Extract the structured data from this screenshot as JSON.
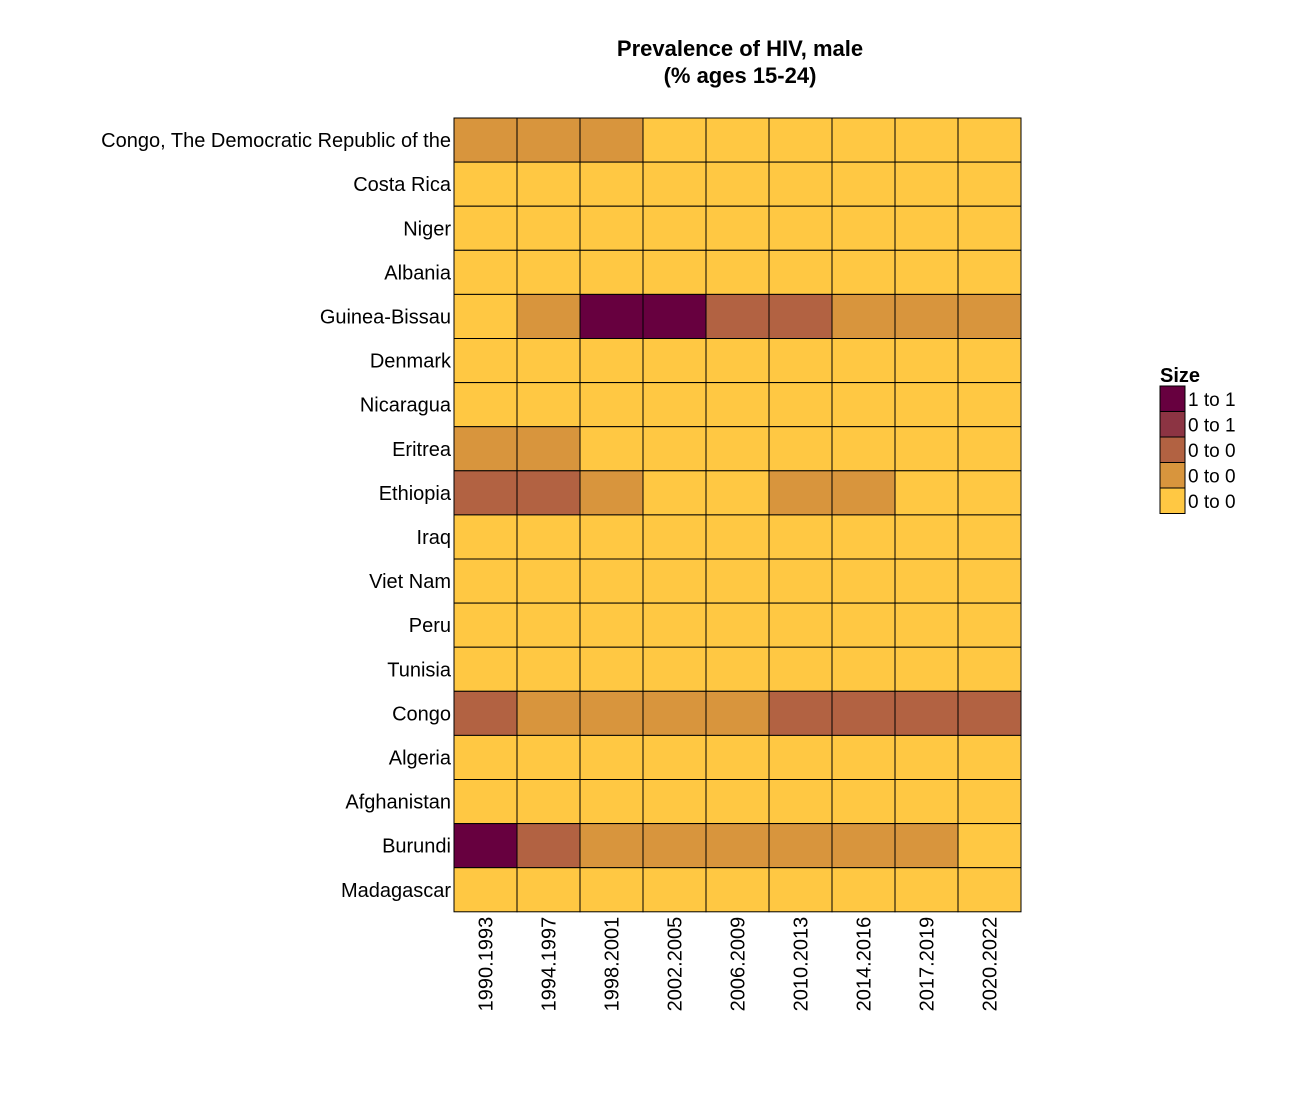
{
  "chart_data": {
    "type": "heatmap",
    "title_lines": [
      "Prevalence of HIV, male",
      "(% ages 15-24)"
    ],
    "xlabel": "",
    "ylabel": "",
    "x_categories": [
      "1990.1993",
      "1994.1997",
      "1998.2001",
      "2002.2005",
      "2006.2009",
      "2010.2013",
      "2014.2016",
      "2017.2019",
      "2020.2022"
    ],
    "y_categories": [
      "Congo, The Democratic Republic of the",
      "Costa Rica",
      "Niger",
      "Albania",
      "Guinea-Bissau",
      "Denmark",
      "Nicaragua",
      "Eritrea",
      "Ethiopia",
      "Iraq",
      "Viet Nam",
      "Peru",
      "Tunisia",
      "Congo",
      "Algeria",
      "Afghanistan",
      "Burundi",
      "Madagascar"
    ],
    "bin_index_note": "0 = lowest bin, 4 = highest bin",
    "bins": [
      [
        1,
        1,
        1,
        0,
        0,
        0,
        0,
        0,
        0
      ],
      [
        0,
        0,
        0,
        0,
        0,
        0,
        0,
        0,
        0
      ],
      [
        0,
        0,
        0,
        0,
        0,
        0,
        0,
        0,
        0
      ],
      [
        0,
        0,
        0,
        0,
        0,
        0,
        0,
        0,
        0
      ],
      [
        0,
        1,
        4,
        4,
        2,
        2,
        1,
        1,
        1
      ],
      [
        0,
        0,
        0,
        0,
        0,
        0,
        0,
        0,
        0
      ],
      [
        0,
        0,
        0,
        0,
        0,
        0,
        0,
        0,
        0
      ],
      [
        1,
        1,
        0,
        0,
        0,
        0,
        0,
        0,
        0
      ],
      [
        2,
        2,
        1,
        0,
        0,
        1,
        1,
        0,
        0
      ],
      [
        0,
        0,
        0,
        0,
        0,
        0,
        0,
        0,
        0
      ],
      [
        0,
        0,
        0,
        0,
        0,
        0,
        0,
        0,
        0
      ],
      [
        0,
        0,
        0,
        0,
        0,
        0,
        0,
        0,
        0
      ],
      [
        0,
        0,
        0,
        0,
        0,
        0,
        0,
        0,
        0
      ],
      [
        2,
        1,
        1,
        1,
        1,
        2,
        2,
        2,
        2
      ],
      [
        0,
        0,
        0,
        0,
        0,
        0,
        0,
        0,
        0
      ],
      [
        0,
        0,
        0,
        0,
        0,
        0,
        0,
        0,
        0
      ],
      [
        4,
        2,
        1,
        1,
        1,
        1,
        1,
        1,
        0
      ],
      [
        0,
        0,
        0,
        0,
        0,
        0,
        0,
        0,
        0
      ]
    ],
    "legend": {
      "title": "Size",
      "position": "right",
      "entries": [
        {
          "label": "1 to 1",
          "color": "#67003F",
          "bin": 4
        },
        {
          "label": "0 to 1",
          "color": "#8C3443",
          "bin": 3
        },
        {
          "label": "0 to 0",
          "color": "#B26242",
          "bin": 2
        },
        {
          "label": "0 to 0",
          "color": "#D8953D",
          "bin": 1
        },
        {
          "label": "0 to 0",
          "color": "#FFC843",
          "bin": 0
        }
      ]
    },
    "cell_border_color": "#000000",
    "grid": false
  }
}
